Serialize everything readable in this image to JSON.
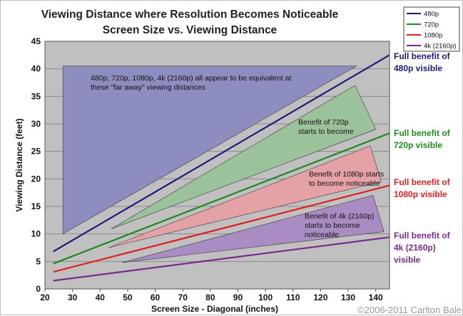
{
  "chart_data": {
    "type": "line",
    "title": "Viewing Distance where Resolution Becomes Noticeable",
    "subtitle": "Screen Size vs. Viewing Distance",
    "xlabel": "Screen Size - Diagonal (inches)",
    "ylabel": "Viewing Distance (feet)",
    "xlim": [
      20,
      145
    ],
    "ylim": [
      0,
      45
    ],
    "x_ticks": [
      "20",
      "30",
      "40",
      "50",
      "60",
      "70",
      "80",
      "90",
      "100",
      "110",
      "120",
      "130",
      "140"
    ],
    "y_ticks": [
      "0",
      "5",
      "10",
      "15",
      "20",
      "25",
      "30",
      "35",
      "40",
      "45"
    ],
    "grid": "horizontal",
    "legend_position": "top-right",
    "series": [
      {
        "name": "480p",
        "color": "#1b1b7a",
        "x": [
          23,
          145
        ],
        "y": [
          6.8,
          42.5
        ]
      },
      {
        "name": "720p",
        "color": "#1f8a1f",
        "x": [
          23,
          145
        ],
        "y": [
          4.6,
          28.3
        ]
      },
      {
        "name": "1080p",
        "color": "#e02020",
        "x": [
          23,
          145
        ],
        "y": [
          3.1,
          18.8
        ]
      },
      {
        "name": "4k (2160p)",
        "color": "#7a2a8a",
        "x": [
          23,
          145
        ],
        "y": [
          1.5,
          9.4
        ]
      }
    ],
    "regions": [
      {
        "color": "#8d8dbf",
        "points": [
          [
            26.5,
            40.5
          ],
          [
            133,
            40.5
          ],
          [
            26.5,
            10
          ]
        ]
      },
      {
        "color": "#9cc29c",
        "points": [
          [
            44,
            10.9
          ],
          [
            132.5,
            37
          ],
          [
            140,
            29
          ]
        ]
      },
      {
        "color": "#e4a2a6",
        "points": [
          [
            43,
            7.5
          ],
          [
            138,
            26
          ],
          [
            142,
            19.5
          ]
        ]
      },
      {
        "color": "#a98cc2",
        "points": [
          [
            48,
            4.8
          ],
          [
            139,
            17
          ],
          [
            143,
            10.4
          ]
        ]
      }
    ],
    "annotations": [
      {
        "text": [
          "480p, 720p, 1080p, 4k (2160p) all appear to be equivalent at",
          "these \"far away\" viewing distances"
        ]
      },
      {
        "text": [
          "Benefit of 720p",
          "starts to become"
        ]
      },
      {
        "text": [
          "Benefit of 1080p starts",
          "to become noticeable"
        ]
      },
      {
        "text": [
          "Benefit of 4k (2160p)",
          "starts to become",
          "noticeable"
        ]
      }
    ],
    "right_labels": [
      {
        "color": "#1b1b7a",
        "lines": [
          "Full benefit of",
          "480p visible"
        ]
      },
      {
        "color": "#1f8a1f",
        "lines": [
          "Full benefit of",
          "720p visible"
        ]
      },
      {
        "color": "#e02020",
        "lines": [
          "Full benefit of",
          "1080p visible"
        ]
      },
      {
        "color": "#7a2a8a",
        "lines": [
          "Full benefit of",
          "4k (2160p)",
          "visible"
        ]
      }
    ]
  },
  "copyright": "©2006-2011 Carlton Bale"
}
